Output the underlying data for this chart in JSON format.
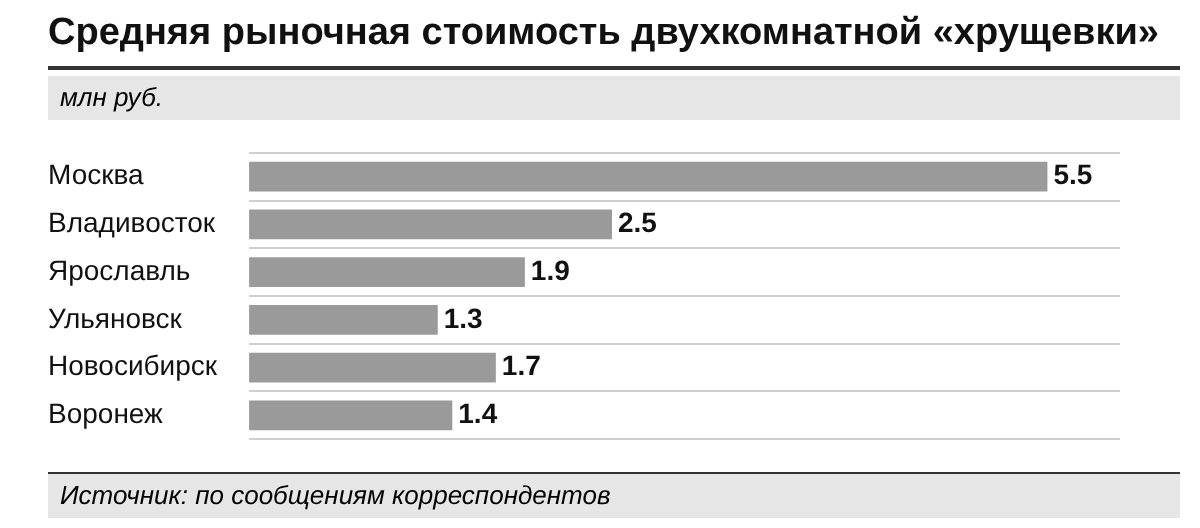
{
  "chart_data": {
    "type": "bar",
    "orientation": "horizontal",
    "title": "Средняя рыночная стоимость двухкомнатной «хрущевки»",
    "subtitle": "млн руб.",
    "categories": [
      "Москва",
      "Владивосток",
      "Ярославль",
      "Ульяновск",
      "Новосибирск",
      "Воронеж"
    ],
    "values": [
      5.5,
      2.5,
      1.9,
      1.3,
      1.7,
      1.4
    ],
    "color": "#9a9a9a",
    "data_labels": true,
    "grid": "y",
    "annotations": [
      "Источник: по сообщениям корреспондентов"
    ]
  }
}
